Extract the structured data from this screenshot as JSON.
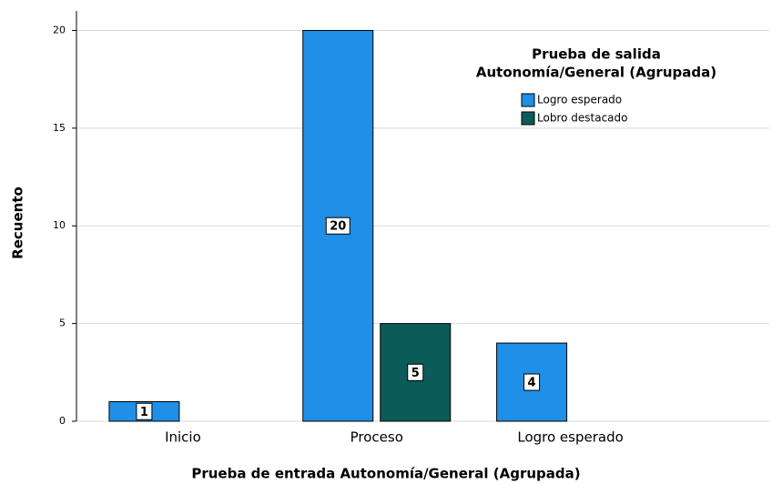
{
  "chart_data": {
    "type": "bar",
    "x_label": "Prueba de entrada Autonomía/General (Agrupada)",
    "y_label": "Recuento",
    "legend_title": [
      "Prueba de salida",
      "Autonomía/General (Agrupada)"
    ],
    "legend_position": "upper right",
    "categories": [
      "Inicio",
      "Proceso",
      "Logro esperado"
    ],
    "series": [
      {
        "name": "Logro esperado",
        "color": "#1f8fe8",
        "values": [
          1,
          20,
          4
        ]
      },
      {
        "name": "Lobro destacado",
        "color": "#0b5c59",
        "values": [
          null,
          5,
          null
        ]
      }
    ],
    "ylim": [
      0,
      21
    ],
    "yticks": [
      0,
      5,
      10,
      15,
      20
    ],
    "grid": true
  }
}
